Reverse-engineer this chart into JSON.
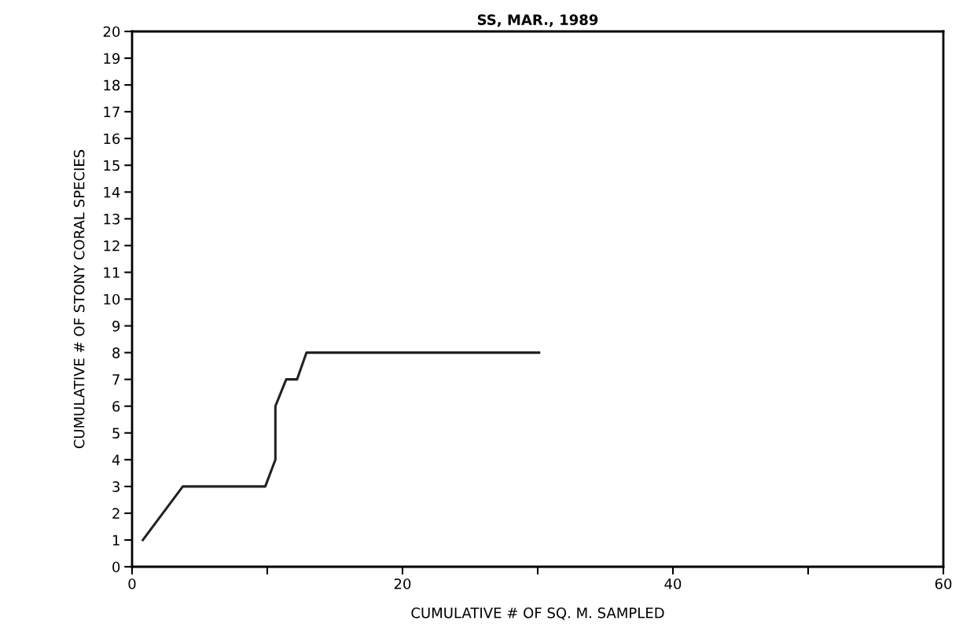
{
  "chart_data": {
    "type": "line",
    "title": "SS, MAR., 1989",
    "xlabel": "CUMULATIVE # OF SQ. M. SAMPLED",
    "ylabel": "CUMULATIVE # OF STONY CORAL SPECIES",
    "x": [
      0.8,
      3.75,
      9.85,
      10.6,
      10.6,
      11.4,
      12.2,
      12.9,
      30.1
    ],
    "series": [
      {
        "color": "#222222",
        "values": [
          1,
          3,
          3,
          4,
          6,
          7,
          7,
          8,
          8
        ]
      }
    ],
    "xlim": [
      0,
      60
    ],
    "ylim": [
      0,
      20
    ],
    "xticks": [
      0,
      {
        "value": 10,
        "label": null
      },
      20,
      {
        "value": 30,
        "label": null
      },
      40,
      {
        "value": 50,
        "label": null
      },
      60
    ],
    "yticks": [
      0,
      1,
      2,
      3,
      4,
      5,
      6,
      7,
      8,
      9,
      10,
      11,
      12,
      13,
      14,
      15,
      16,
      17,
      18,
      19,
      20
    ],
    "grid": false,
    "legend": false,
    "marker": "none",
    "line_style": "solid"
  }
}
